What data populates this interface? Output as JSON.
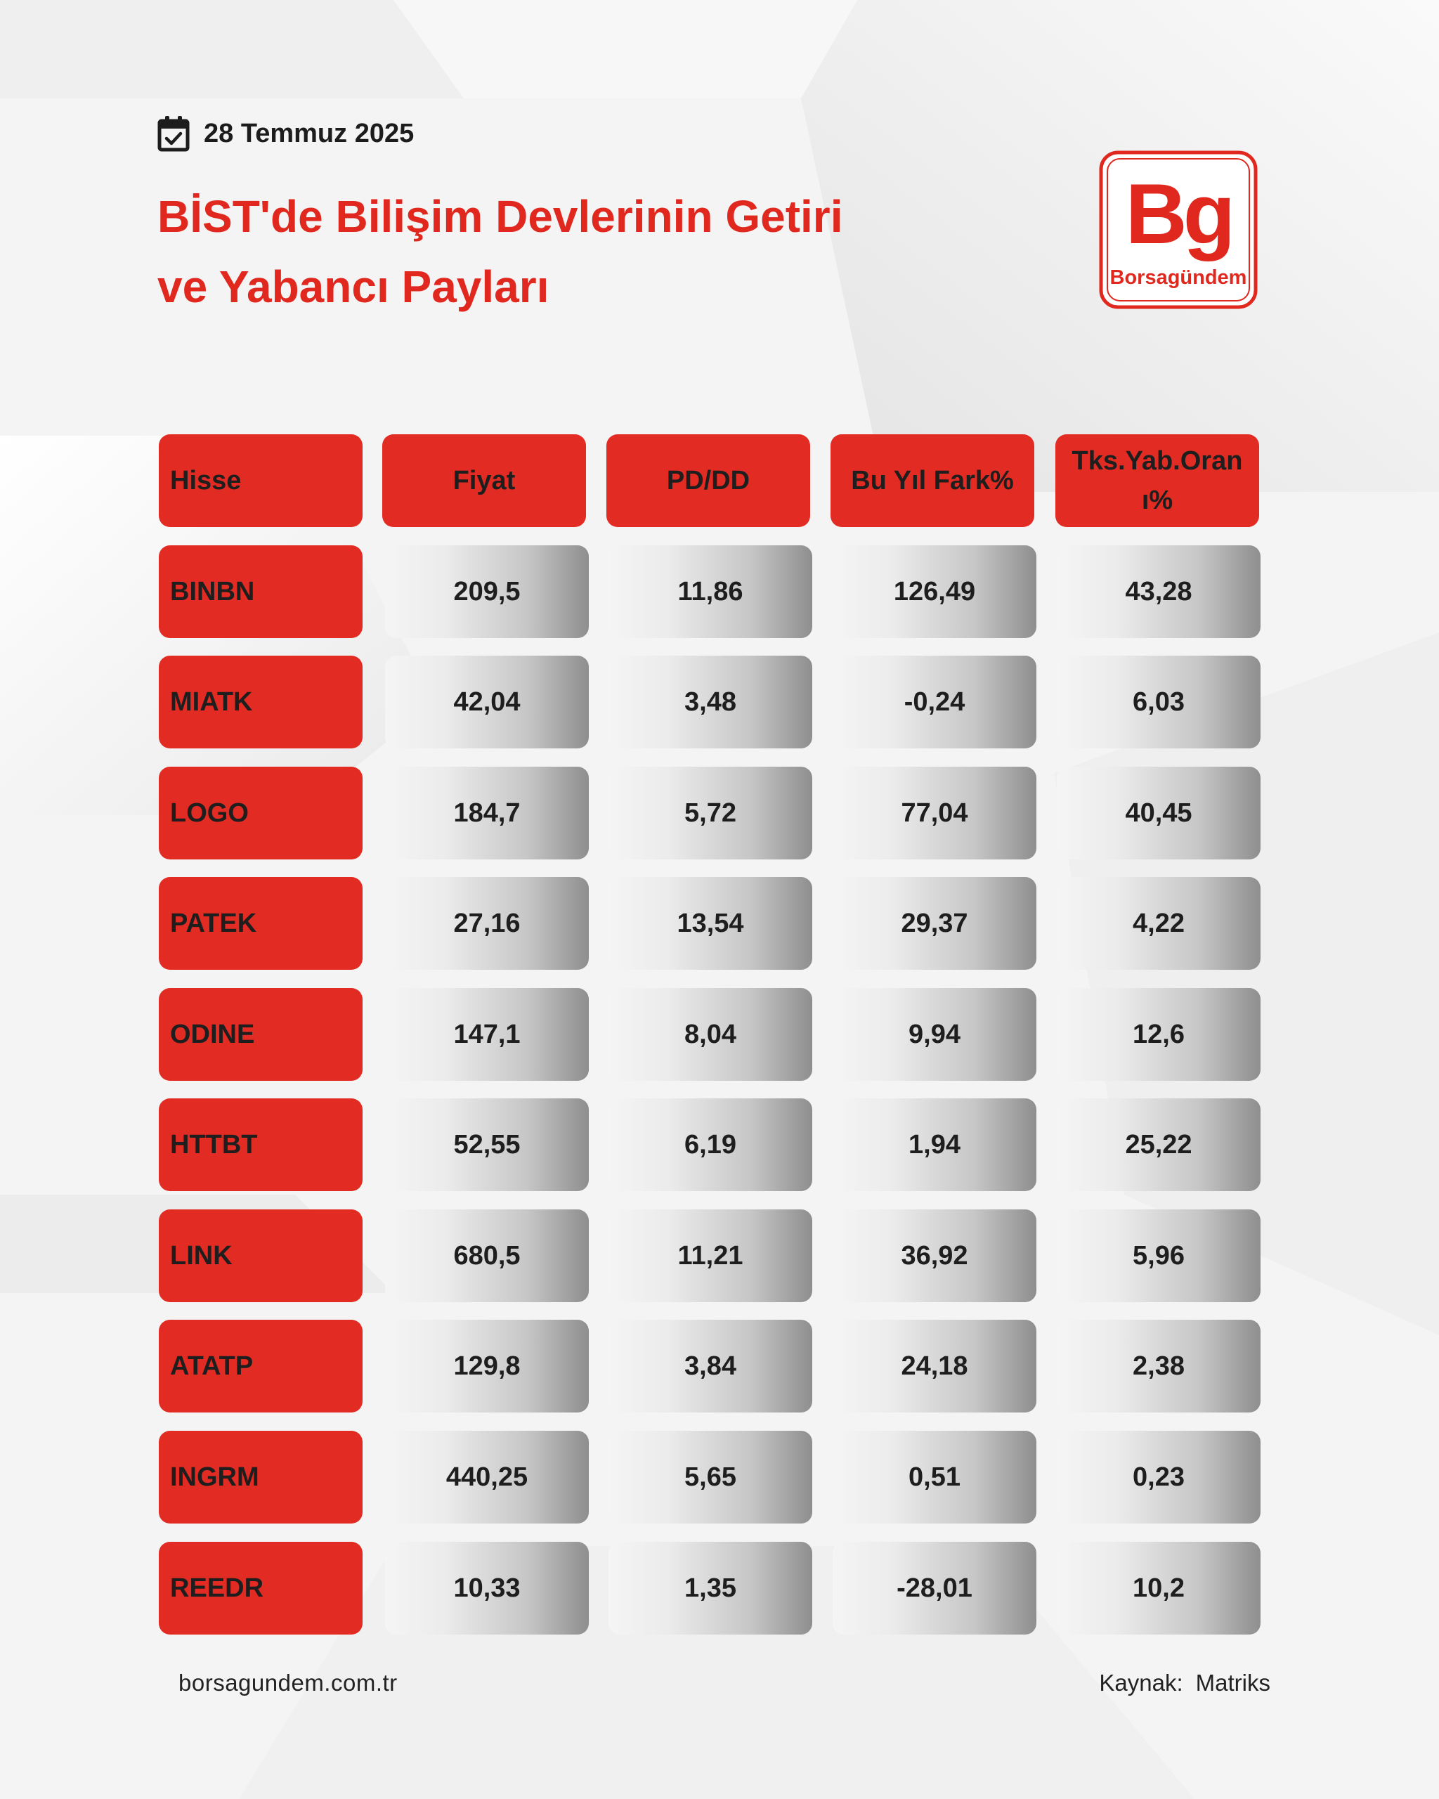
{
  "date": "28 Temmuz 2025",
  "title": {
    "line1": "BİST'de Bilişim Devlerinin Getiri",
    "line2": "ve Yabancı Payları"
  },
  "logo": {
    "mark": "Bg",
    "name": "Borsagündem",
    "color": "#e0281f"
  },
  "table": {
    "headers": {
      "stock": "Hisse",
      "price": "Fiyat",
      "pddd": "PD/DD",
      "ytd": "Bu Yıl Fark%",
      "foreign_line1": "Tks.Yab.Oran",
      "foreign_line2": "ı%"
    },
    "rows": [
      {
        "stock": "BINBN",
        "price": "209,5",
        "pddd": "11,86",
        "ytd": "126,49",
        "foreign": "43,28"
      },
      {
        "stock": "MIATK",
        "price": "42,04",
        "pddd": "3,48",
        "ytd": "-0,24",
        "foreign": "6,03"
      },
      {
        "stock": "LOGO",
        "price": "184,7",
        "pddd": "5,72",
        "ytd": "77,04",
        "foreign": "40,45"
      },
      {
        "stock": "PATEK",
        "price": "27,16",
        "pddd": "13,54",
        "ytd": "29,37",
        "foreign": "4,22"
      },
      {
        "stock": "ODINE",
        "price": "147,1",
        "pddd": "8,04",
        "ytd": "9,94",
        "foreign": "12,6"
      },
      {
        "stock": "HTTBT",
        "price": "52,55",
        "pddd": "6,19",
        "ytd": "1,94",
        "foreign": "25,22"
      },
      {
        "stock": "LINK",
        "price": "680,5",
        "pddd": "11,21",
        "ytd": "36,92",
        "foreign": "5,96"
      },
      {
        "stock": "ATATP",
        "price": "129,8",
        "pddd": "3,84",
        "ytd": "24,18",
        "foreign": "2,38"
      },
      {
        "stock": "INGRM",
        "price": "440,25",
        "pddd": "5,65",
        "ytd": "0,51",
        "foreign": "0,23"
      },
      {
        "stock": "REEDR",
        "price": "10,33",
        "pddd": "1,35",
        "ytd": "-28,01",
        "foreign": "10,2"
      }
    ]
  },
  "footer": {
    "website": "borsagundem.com.tr",
    "source_label": "Kaynak:",
    "source_value": "Matriks"
  },
  "colors": {
    "accent": "#e22b22",
    "text": "#1e1e1e",
    "background": "#f4f4f4"
  }
}
